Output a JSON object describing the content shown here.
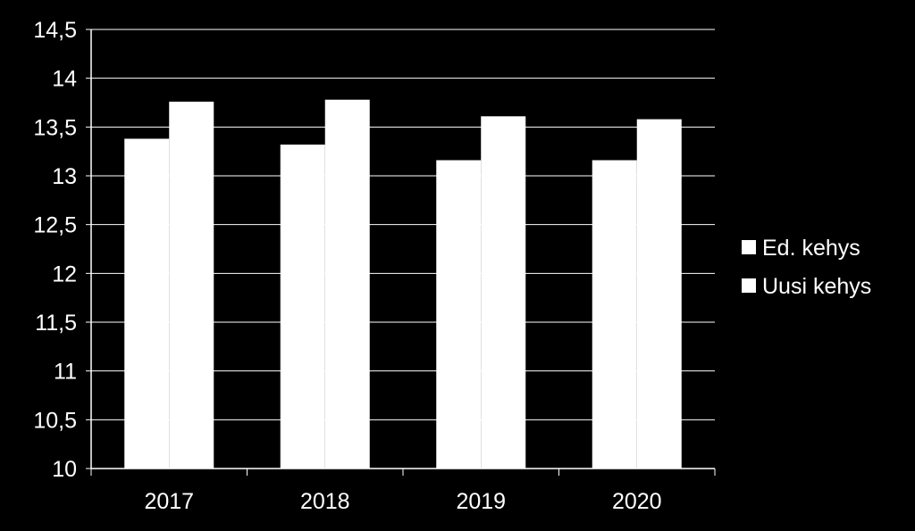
{
  "chart_data": {
    "type": "bar",
    "categories": [
      "2017",
      "2018",
      "2019",
      "2020"
    ],
    "series": [
      {
        "name": "Ed. kehys",
        "values": [
          13.38,
          13.32,
          13.16,
          13.16
        ]
      },
      {
        "name": "Uusi kehys",
        "values": [
          13.76,
          13.78,
          13.61,
          13.58
        ]
      }
    ],
    "ylim": [
      10,
      14.5
    ],
    "y_ticks": [
      "10",
      "10,5",
      "11",
      "11,5",
      "12",
      "12,5",
      "13",
      "13,5",
      "14",
      "14,5"
    ],
    "y_tick_values": [
      10,
      10.5,
      11,
      11.5,
      12,
      12.5,
      13,
      13.5,
      14,
      14.5
    ],
    "grid": true,
    "legend_position": "right",
    "colors": {
      "background": "#000000",
      "bars": "#ffffff",
      "gridlines": "#ffffff",
      "text": "#ffffff"
    }
  }
}
